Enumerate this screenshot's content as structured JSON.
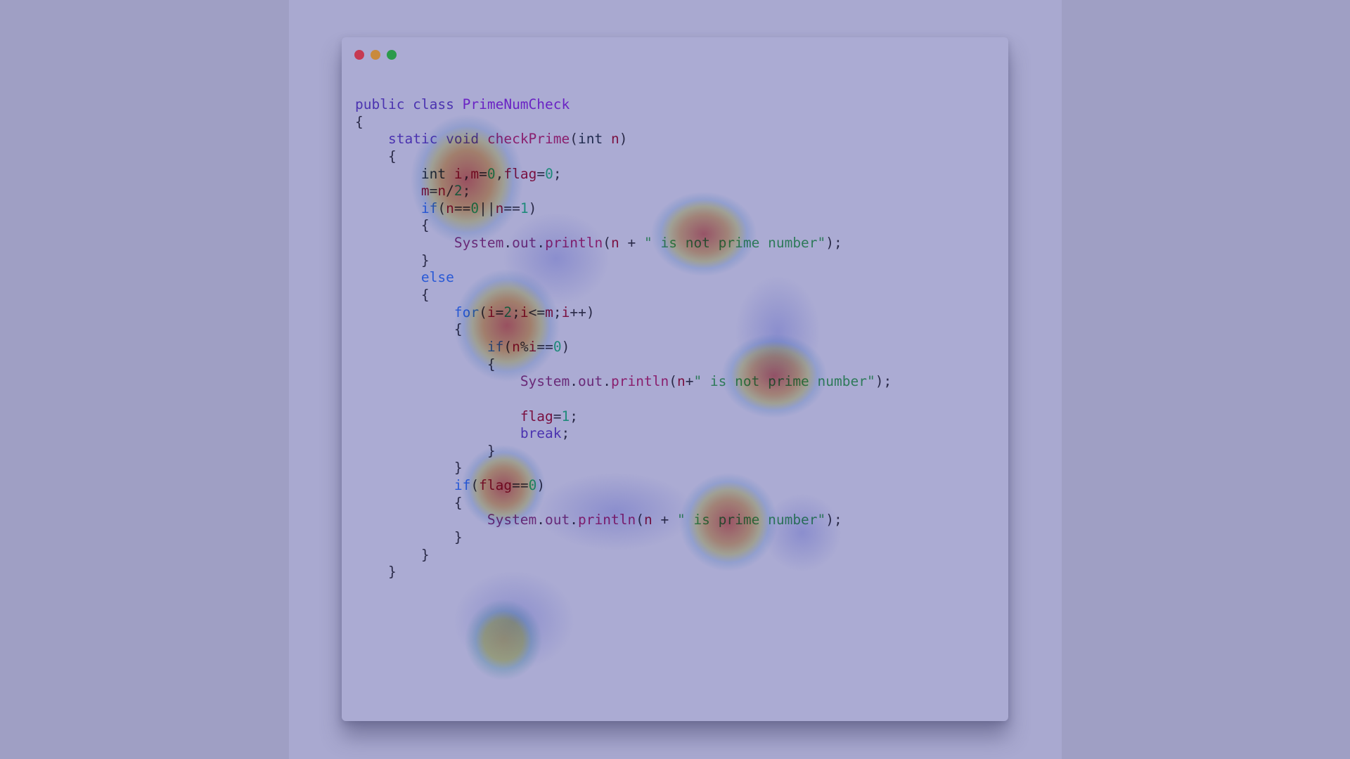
{
  "window": {
    "dots": [
      "close",
      "minimize",
      "maximize"
    ]
  },
  "colors": {
    "keyword": "#4b33b0",
    "flow": "#2a5ad6",
    "type": "#1f2a4e",
    "classname": "#6a23c4",
    "method": "#8a1f6e",
    "variable": "#7a1040",
    "number": "#1e8a7a",
    "string": "#2e7a5a",
    "plain": "#2a2a48",
    "member": "#6a2a78"
  },
  "code": {
    "lines": [
      [
        {
          "t": "public class ",
          "c": "keyword"
        },
        {
          "t": "PrimeNumCheck",
          "c": "classname"
        }
      ],
      [
        {
          "t": "{",
          "c": "plain"
        }
      ],
      [
        {
          "t": "    "
        },
        {
          "t": "static void ",
          "c": "keyword"
        },
        {
          "t": "checkPrime",
          "c": "method"
        },
        {
          "t": "(",
          "c": "plain"
        },
        {
          "t": "int ",
          "c": "type"
        },
        {
          "t": "n",
          "c": "variable"
        },
        {
          "t": ")",
          "c": "plain"
        }
      ],
      [
        {
          "t": "    "
        },
        {
          "t": "{",
          "c": "plain"
        }
      ],
      [
        {
          "t": "        "
        },
        {
          "t": "int ",
          "c": "type"
        },
        {
          "t": "i",
          "c": "variable"
        },
        {
          "t": ",",
          "c": "plain"
        },
        {
          "t": "m",
          "c": "variable"
        },
        {
          "t": "=",
          "c": "plain"
        },
        {
          "t": "0",
          "c": "number"
        },
        {
          "t": ",",
          "c": "plain"
        },
        {
          "t": "flag",
          "c": "variable"
        },
        {
          "t": "=",
          "c": "plain"
        },
        {
          "t": "0",
          "c": "number"
        },
        {
          "t": ";",
          "c": "plain"
        }
      ],
      [
        {
          "t": "        "
        },
        {
          "t": "m",
          "c": "variable"
        },
        {
          "t": "=",
          "c": "plain"
        },
        {
          "t": "n",
          "c": "variable"
        },
        {
          "t": "/",
          "c": "plain"
        },
        {
          "t": "2",
          "c": "number"
        },
        {
          "t": ";",
          "c": "plain"
        }
      ],
      [
        {
          "t": "        "
        },
        {
          "t": "if",
          "c": "flow"
        },
        {
          "t": "(",
          "c": "plain"
        },
        {
          "t": "n",
          "c": "variable"
        },
        {
          "t": "==",
          "c": "plain"
        },
        {
          "t": "0",
          "c": "number"
        },
        {
          "t": "||",
          "c": "plain"
        },
        {
          "t": "n",
          "c": "variable"
        },
        {
          "t": "==",
          "c": "plain"
        },
        {
          "t": "1",
          "c": "number"
        },
        {
          "t": ")",
          "c": "plain"
        }
      ],
      [
        {
          "t": "        "
        },
        {
          "t": "{",
          "c": "plain"
        }
      ],
      [
        {
          "t": "            "
        },
        {
          "t": "System",
          "c": "member"
        },
        {
          "t": ".",
          "c": "plain"
        },
        {
          "t": "out",
          "c": "member"
        },
        {
          "t": ".",
          "c": "plain"
        },
        {
          "t": "println",
          "c": "method"
        },
        {
          "t": "(",
          "c": "plain"
        },
        {
          "t": "n",
          "c": "variable"
        },
        {
          "t": " + ",
          "c": "plain"
        },
        {
          "t": "\" is not prime number\"",
          "c": "string"
        },
        {
          "t": ");",
          "c": "plain"
        }
      ],
      [
        {
          "t": "        "
        },
        {
          "t": "}",
          "c": "plain"
        }
      ],
      [
        {
          "t": "        "
        },
        {
          "t": "else",
          "c": "flow"
        }
      ],
      [
        {
          "t": "        "
        },
        {
          "t": "{",
          "c": "plain"
        }
      ],
      [
        {
          "t": "            "
        },
        {
          "t": "for",
          "c": "flow"
        },
        {
          "t": "(",
          "c": "plain"
        },
        {
          "t": "i",
          "c": "variable"
        },
        {
          "t": "=",
          "c": "plain"
        },
        {
          "t": "2",
          "c": "number"
        },
        {
          "t": ";",
          "c": "plain"
        },
        {
          "t": "i",
          "c": "variable"
        },
        {
          "t": "<=",
          "c": "plain"
        },
        {
          "t": "m",
          "c": "variable"
        },
        {
          "t": ";",
          "c": "plain"
        },
        {
          "t": "i",
          "c": "variable"
        },
        {
          "t": "++",
          "c": "plain"
        },
        {
          "t": ")",
          "c": "plain"
        }
      ],
      [
        {
          "t": "            "
        },
        {
          "t": "{",
          "c": "plain"
        }
      ],
      [
        {
          "t": "                "
        },
        {
          "t": "if",
          "c": "flow"
        },
        {
          "t": "(",
          "c": "plain"
        },
        {
          "t": "n",
          "c": "variable"
        },
        {
          "t": "%",
          "c": "plain"
        },
        {
          "t": "i",
          "c": "variable"
        },
        {
          "t": "==",
          "c": "plain"
        },
        {
          "t": "0",
          "c": "number"
        },
        {
          "t": ")",
          "c": "plain"
        }
      ],
      [
        {
          "t": "                "
        },
        {
          "t": "{",
          "c": "plain"
        }
      ],
      [
        {
          "t": "                    "
        },
        {
          "t": "System",
          "c": "member"
        },
        {
          "t": ".",
          "c": "plain"
        },
        {
          "t": "out",
          "c": "member"
        },
        {
          "t": ".",
          "c": "plain"
        },
        {
          "t": "println",
          "c": "method"
        },
        {
          "t": "(",
          "c": "plain"
        },
        {
          "t": "n",
          "c": "variable"
        },
        {
          "t": "+",
          "c": "plain"
        },
        {
          "t": "\" is not prime number\"",
          "c": "string"
        },
        {
          "t": ");",
          "c": "plain"
        }
      ],
      [],
      [
        {
          "t": "                    "
        },
        {
          "t": "flag",
          "c": "variable"
        },
        {
          "t": "=",
          "c": "plain"
        },
        {
          "t": "1",
          "c": "number"
        },
        {
          "t": ";",
          "c": "plain"
        }
      ],
      [
        {
          "t": "                    "
        },
        {
          "t": "break",
          "c": "keyword"
        },
        {
          "t": ";",
          "c": "plain"
        }
      ],
      [
        {
          "t": "                "
        },
        {
          "t": "}",
          "c": "plain"
        }
      ],
      [
        {
          "t": "            "
        },
        {
          "t": "}",
          "c": "plain"
        }
      ],
      [
        {
          "t": "            "
        },
        {
          "t": "if",
          "c": "flow"
        },
        {
          "t": "(",
          "c": "plain"
        },
        {
          "t": "flag",
          "c": "variable"
        },
        {
          "t": "==",
          "c": "plain"
        },
        {
          "t": "0",
          "c": "number"
        },
        {
          "t": ")",
          "c": "plain"
        }
      ],
      [
        {
          "t": "            "
        },
        {
          "t": "{",
          "c": "plain"
        }
      ],
      [
        {
          "t": "                "
        },
        {
          "t": "System",
          "c": "member"
        },
        {
          "t": ".",
          "c": "plain"
        },
        {
          "t": "out",
          "c": "member"
        },
        {
          "t": ".",
          "c": "plain"
        },
        {
          "t": "println",
          "c": "method"
        },
        {
          "t": "(",
          "c": "plain"
        },
        {
          "t": "n",
          "c": "variable"
        },
        {
          "t": " + ",
          "c": "plain"
        },
        {
          "t": "\" is prime number\"",
          "c": "string"
        },
        {
          "t": ");",
          "c": "plain"
        }
      ],
      [
        {
          "t": "            "
        },
        {
          "t": "}",
          "c": "plain"
        }
      ],
      [
        {
          "t": "        "
        },
        {
          "t": "}",
          "c": "plain"
        }
      ],
      [
        {
          "t": "    "
        },
        {
          "t": "}",
          "c": "plain"
        }
      ]
    ]
  }
}
